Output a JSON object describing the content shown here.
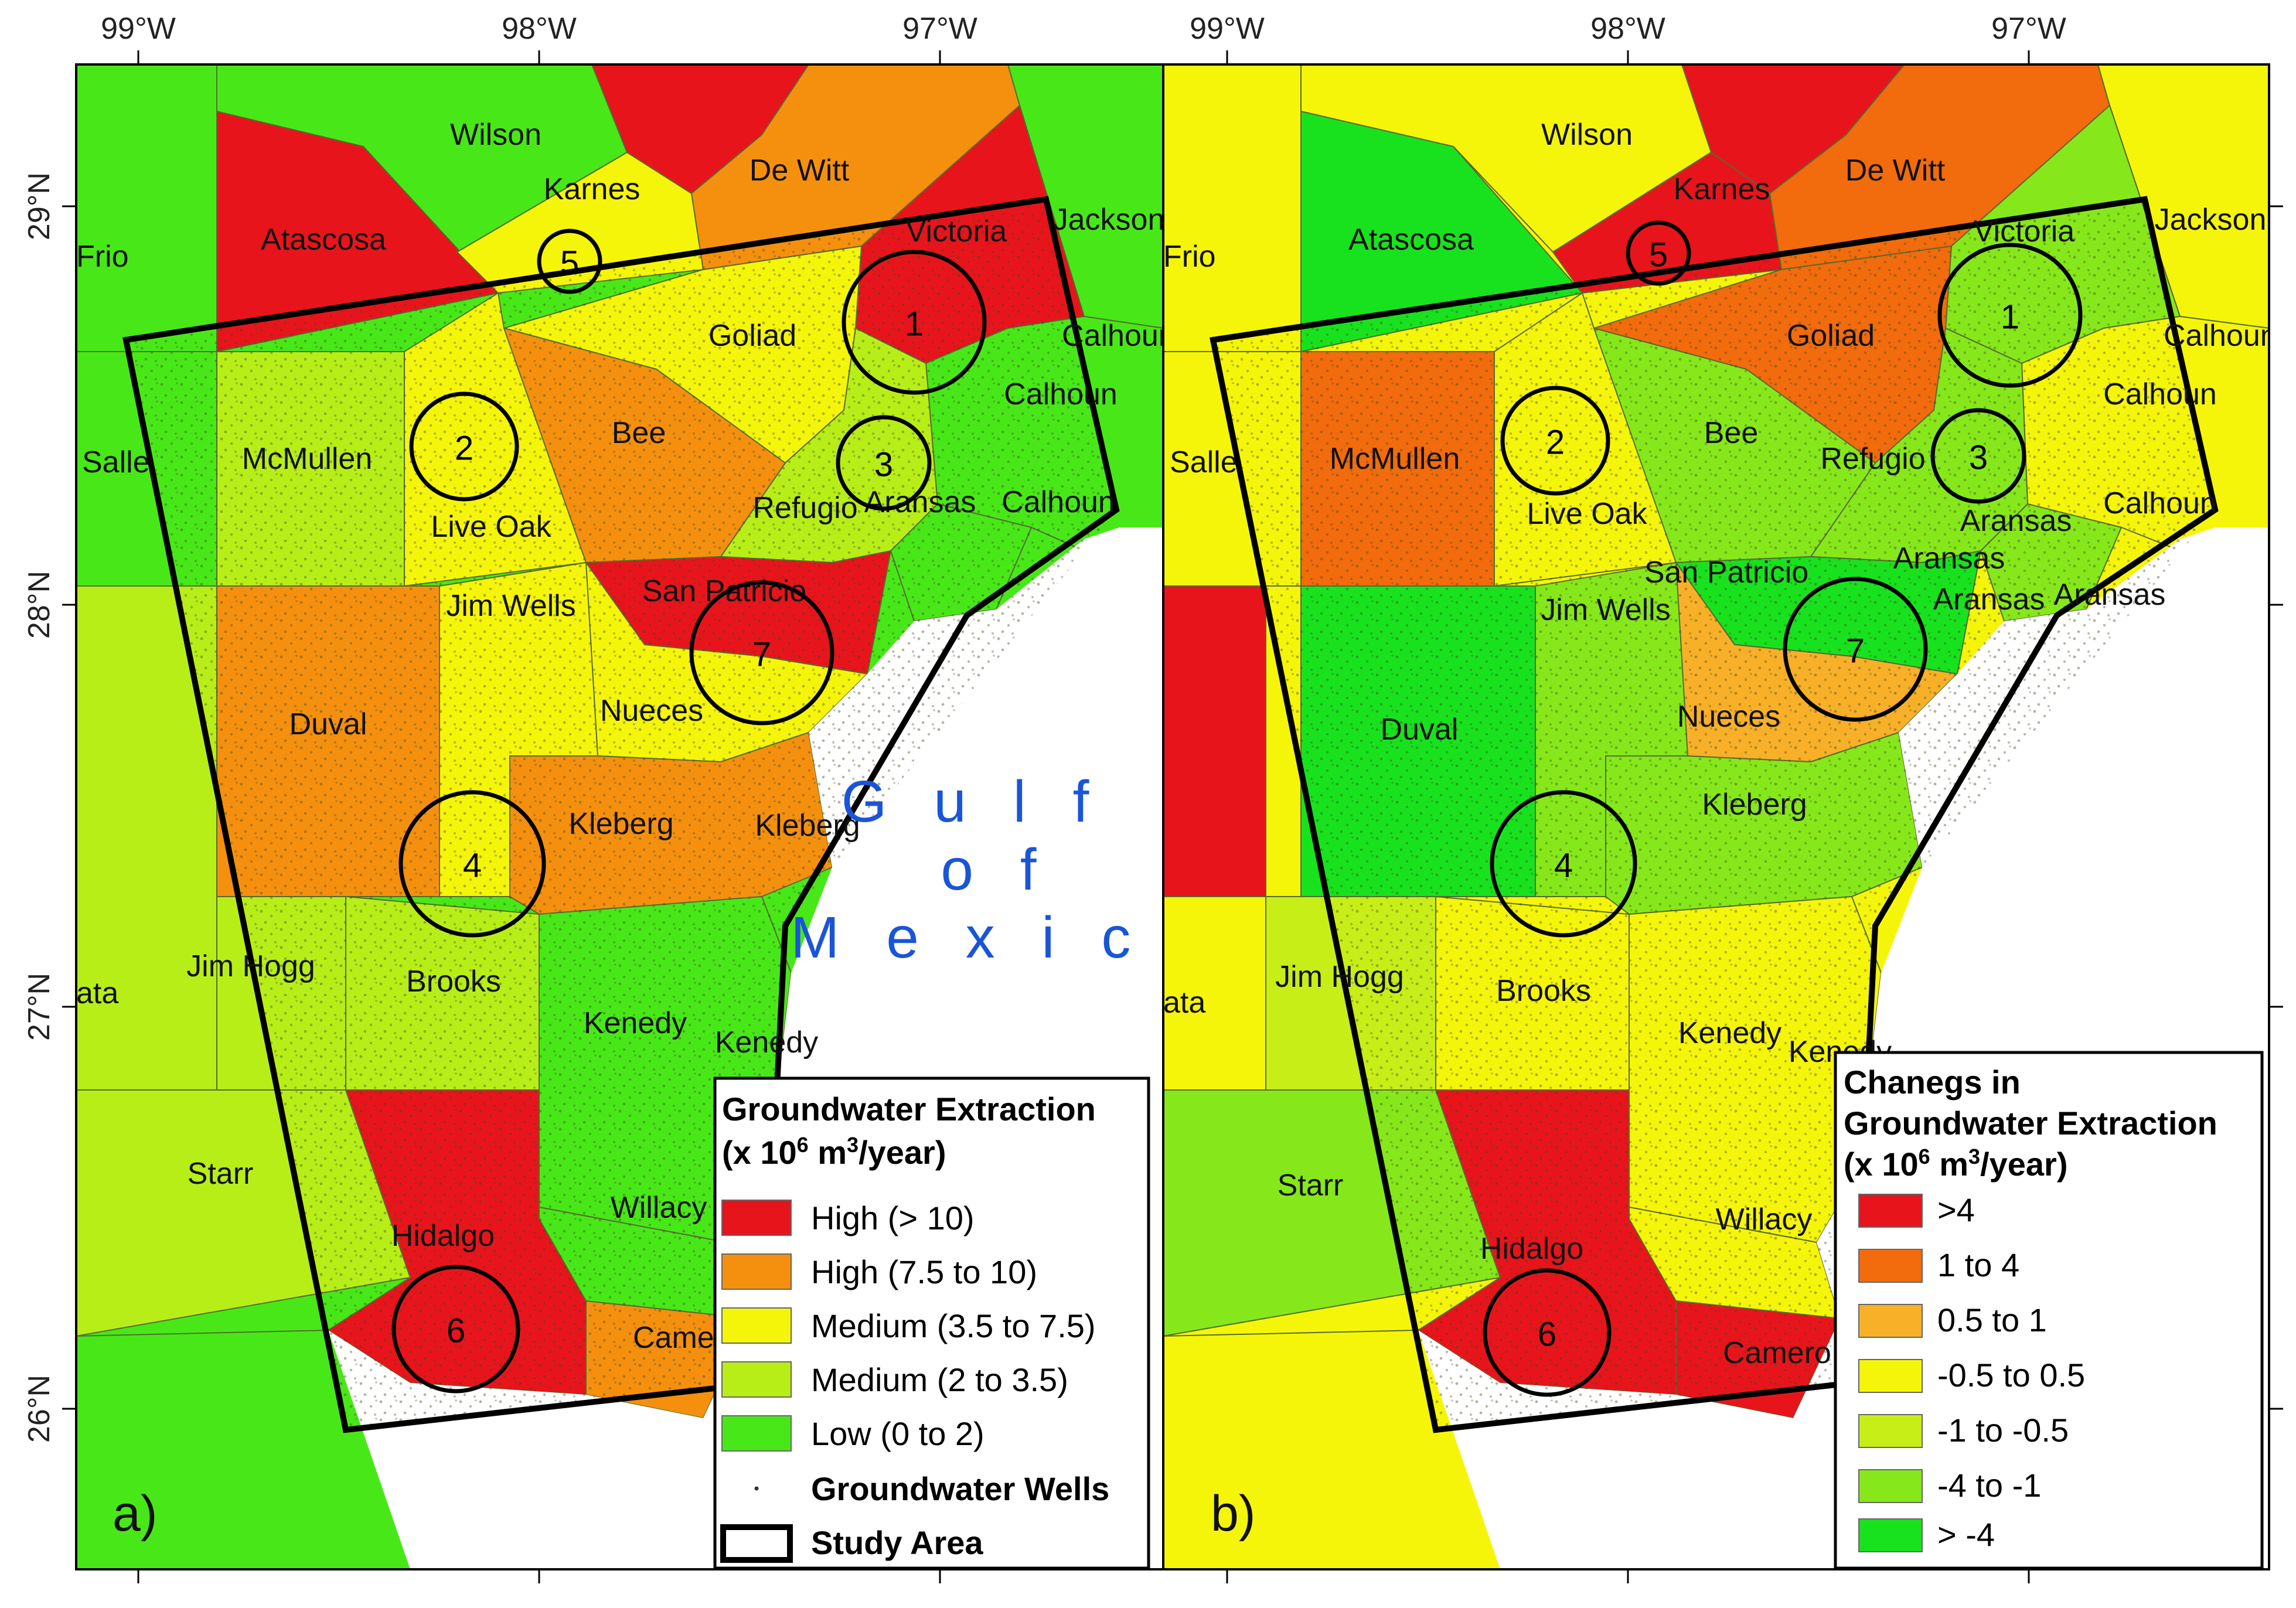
{
  "axes": {
    "lon_labels": [
      "99°W",
      "98°W",
      "97°W"
    ],
    "lat_labels": [
      "29°N",
      "28°N",
      "27°N",
      "26°N"
    ]
  },
  "colors": {
    "c_high10": "#e8141c",
    "c_high75": "#f5900e",
    "c_med35": "#f5f50a",
    "c_med2": "#b8ee18",
    "c_low": "#48e818",
    "b_gt4": "#e8141c",
    "b_1to4": "#f26b0c",
    "b_05to1": "#f8b028",
    "b_neg05": "#f5f50a",
    "b_neg1": "#c8ee18",
    "b_neg4": "#86e81a",
    "b_gtneg4": "#18e21e",
    "water": "#ffffff",
    "study_area": "#000000",
    "gulf_text": "#1a55d8"
  },
  "gulf_label": [
    "G u l f",
    "o f",
    "M e x i c o"
  ],
  "panel_a": {
    "label": "a)",
    "counties": [
      "Wilson",
      "Karnes",
      "De Witt",
      "Victoria",
      "Jackson",
      "Atascosa",
      "Frio",
      "Goliad",
      "Calhoun",
      "Calhoun",
      "McMullen",
      "Salle",
      "Bee",
      "Refugio",
      "Aransas",
      "Calhoun",
      "Live Oak",
      "Jim Wells",
      "San Patricio",
      "Duval",
      "Nueces",
      "Kleberg",
      "Kleberg",
      "Jim Hogg",
      "Brooks",
      "Kenedy",
      "Kenedy",
      "ata",
      "Starr",
      "Hidalgo",
      "Willacy",
      "Camer"
    ],
    "circle_numbers": [
      "1",
      "2",
      "3",
      "4",
      "5",
      "6",
      "7"
    ],
    "legend": {
      "title_line1": "Groundwater Extraction",
      "title_line2_prefix": "(x 10",
      "title_line2_sup1": "6",
      "title_line2_mid": " m",
      "title_line2_sup2": "3",
      "title_line2_suffix": "/year)",
      "items": [
        "High (> 10)",
        "High (7.5 to 10)",
        "Medium (3.5 to 7.5)",
        "Medium (2 to 3.5)",
        "Low (0 to 2)"
      ],
      "wells_label": "Groundwater Wells",
      "study_area_label": "Study Area"
    }
  },
  "panel_b": {
    "label": "b)",
    "counties": [
      "Wilson",
      "Karnes",
      "De Witt",
      "Victoria",
      "Jackson",
      "Atascosa",
      "Frio",
      "Goliad",
      "Calhoun",
      "Calhoun",
      "Calhoun",
      "McMullen",
      "Salle",
      "Bee",
      "Refugio",
      "Aransas",
      "Aransas",
      "Aransas",
      "Aransas",
      "Live Oak",
      "San Patricio",
      "Jim Wells",
      "Duval",
      "Nueces",
      "Kleberg",
      "Jim Hogg",
      "Brooks",
      "Kenedy",
      "Kenedy",
      "ata",
      "Starr",
      "Hidalgo",
      "Willacy",
      "Camero"
    ],
    "circle_numbers": [
      "1",
      "2",
      "3",
      "4",
      "5",
      "6",
      "7"
    ],
    "legend": {
      "title_line1": "Chanegs in",
      "title_line2": "Groundwater Extraction",
      "title_line3_prefix": "(x 10",
      "title_line3_sup1": "6",
      "title_line3_mid": " m",
      "title_line3_sup2": "3",
      "title_line3_suffix": "/year)",
      "items": [
        ">4",
        "1 to 4",
        "0.5 to 1",
        "-0.5 to 0.5",
        "-1 to -0.5",
        "-4 to -1",
        "> -4"
      ]
    }
  }
}
